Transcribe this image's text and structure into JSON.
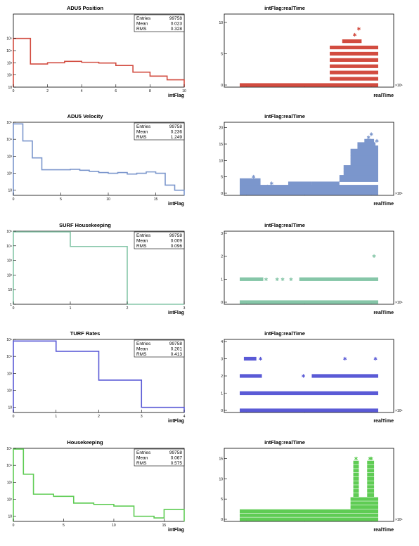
{
  "rows": [
    {
      "title": "ADU5 Position",
      "color": "#d24c40",
      "hist": {
        "xlabel": "intFlag",
        "x": [
          0,
          10
        ],
        "xticks": [
          "0",
          "2",
          "4",
          "6",
          "8",
          "10"
        ],
        "ylog": [
          10,
          10000000
        ],
        "yticks": [
          "10",
          "10²",
          "10³",
          "10⁴",
          "10⁵"
        ],
        "bins": [
          [
            0,
            1,
            100000
          ],
          [
            1,
            2,
            800
          ],
          [
            2,
            3,
            1000
          ],
          [
            3,
            4,
            1300
          ],
          [
            4,
            5,
            1100
          ],
          [
            5,
            6,
            950
          ],
          [
            6,
            7,
            600
          ],
          [
            7,
            8,
            170
          ],
          [
            8,
            9,
            80
          ],
          [
            9,
            10,
            40
          ]
        ],
        "stats": {
          "entries_label": "Entries",
          "entries": "99758",
          "mean_label": "Mean",
          "mean": "0.023",
          "rms_label": "RMS",
          "rms": "0.328"
        }
      },
      "scatter": {
        "title": "intFlag:realTime",
        "xlabel": "realTime",
        "exp": "×10⁶",
        "ymax": 11,
        "yticks": [
          0,
          5,
          10
        ],
        "baseline": [
          0
        ],
        "clusters": [
          [
            0.65,
            1.0,
            1
          ],
          [
            0.65,
            1.0,
            2
          ],
          [
            0.65,
            1.0,
            3
          ],
          [
            0.65,
            1.0,
            4
          ],
          [
            0.65,
            1.0,
            5
          ],
          [
            0.65,
            1.0,
            6
          ],
          [
            0.74,
            0.88,
            7
          ]
        ],
        "singles": [
          [
            0.83,
            8
          ],
          [
            0.86,
            9
          ]
        ]
      }
    },
    {
      "title": "ADU5 Velocity",
      "color": "#7b96cc",
      "hist": {
        "xlabel": "intFlag",
        "x": [
          0,
          18
        ],
        "xticks": [
          "0",
          "5",
          "10",
          "15"
        ],
        "ylog": [
          5,
          100000
        ],
        "yticks": [
          "10",
          "10²",
          "10³",
          "10⁴",
          "10⁵"
        ],
        "bins": [
          [
            0,
            1,
            80000
          ],
          [
            1,
            2,
            8000
          ],
          [
            2,
            3,
            800
          ],
          [
            3,
            4,
            160
          ],
          [
            4,
            5,
            160
          ],
          [
            5,
            6,
            160
          ],
          [
            6,
            7,
            170
          ],
          [
            7,
            8,
            150
          ],
          [
            8,
            9,
            130
          ],
          [
            9,
            10,
            110
          ],
          [
            10,
            11,
            100
          ],
          [
            11,
            12,
            110
          ],
          [
            12,
            13,
            90
          ],
          [
            13,
            14,
            100
          ],
          [
            14,
            15,
            120
          ],
          [
            15,
            16,
            100
          ],
          [
            16,
            17,
            20
          ],
          [
            17,
            18,
            10
          ]
        ],
        "stats": {
          "entries_label": "Entries",
          "entries": "99758",
          "mean_label": "Mean",
          "mean": "0.236",
          "rms_label": "RMS",
          "rms": "1.249"
        }
      },
      "scatter": {
        "title": "intFlag:realTime",
        "xlabel": "realTime",
        "exp": "×10⁶",
        "ymax": 21,
        "yticks": [
          0,
          5,
          10,
          15,
          20
        ],
        "baseline": [
          0,
          1,
          2
        ],
        "clusters": [
          [
            0.0,
            0.15,
            3
          ],
          [
            0.0,
            0.15,
            4
          ],
          [
            0.35,
            0.52,
            3
          ],
          [
            0.52,
            0.72,
            3
          ],
          [
            0.72,
            1.0,
            4
          ],
          [
            0.72,
            1.0,
            5
          ],
          [
            0.75,
            1.0,
            6
          ],
          [
            0.75,
            1.0,
            7
          ],
          [
            0.75,
            1.0,
            8
          ],
          [
            0.8,
            1.0,
            9
          ],
          [
            0.8,
            1.0,
            10
          ],
          [
            0.8,
            1.0,
            11
          ],
          [
            0.8,
            1.0,
            12
          ],
          [
            0.8,
            1.0,
            13
          ],
          [
            0.85,
            1.0,
            14
          ],
          [
            0.85,
            0.98,
            15
          ],
          [
            0.9,
            0.97,
            16
          ]
        ],
        "singles": [
          [
            0.1,
            5
          ],
          [
            0.2,
            2
          ],
          [
            0.23,
            3
          ],
          [
            0.93,
            17
          ],
          [
            0.95,
            18
          ],
          [
            0.99,
            16
          ]
        ]
      }
    },
    {
      "title": "SURF Housekeeping",
      "color": "#86c6a8",
      "hist": {
        "xlabel": "intFlag",
        "x": [
          0,
          3
        ],
        "xticks": [
          "0",
          "1",
          "2",
          "3"
        ],
        "ylog": [
          1,
          100000
        ],
        "yticks": [
          "1",
          "10",
          "10²",
          "10³",
          "10⁴",
          "10⁵"
        ],
        "bins": [
          [
            0,
            1,
            90000
          ],
          [
            1,
            2,
            9000
          ],
          [
            2,
            3,
            1
          ]
        ],
        "stats": {
          "entries_label": "Entries",
          "entries": "99758",
          "mean_label": "Mean",
          "mean": "0.009",
          "rms_label": "RMS",
          "rms": "0.096"
        }
      },
      "scatter": {
        "title": "intFlag:realTime",
        "xlabel": "realTime",
        "exp": "×10⁶",
        "ymax": 3,
        "yticks": [
          0,
          1,
          2,
          3
        ],
        "baseline": [
          0
        ],
        "clusters": [
          [
            0.0,
            0.17,
            1
          ],
          [
            0.43,
            1.0,
            1
          ]
        ],
        "singles": [
          [
            0.19,
            1
          ],
          [
            0.27,
            1
          ],
          [
            0.31,
            1
          ],
          [
            0.37,
            1
          ],
          [
            0.97,
            2
          ]
        ]
      }
    },
    {
      "title": "TURF Rates",
      "color": "#5a5ad6",
      "hist": {
        "xlabel": "intFlag",
        "x": [
          0,
          4
        ],
        "xticks": [
          "0",
          "1",
          "2",
          "3",
          "4"
        ],
        "ylog": [
          5,
          100000
        ],
        "yticks": [
          "10",
          "10²",
          "10³",
          "10⁴",
          "10⁵"
        ],
        "bins": [
          [
            0,
            1,
            80000
          ],
          [
            1,
            2,
            20000
          ],
          [
            2,
            3,
            400
          ],
          [
            3,
            4,
            10
          ]
        ],
        "stats": {
          "entries_label": "Entries",
          "entries": "99758",
          "mean_label": "Mean",
          "mean": "0.201",
          "rms_label": "RMS",
          "rms": "0.413"
        }
      },
      "scatter": {
        "title": "intFlag:realTime",
        "xlabel": "realTime",
        "exp": "×10⁶",
        "ymax": 4,
        "yticks": [
          0,
          1,
          2,
          3,
          4
        ],
        "baseline": [
          0,
          1
        ],
        "clusters": [
          [
            0.0,
            0.16,
            2
          ],
          [
            0.52,
            1.0,
            2
          ],
          [
            0.03,
            0.12,
            3
          ]
        ],
        "singles": [
          [
            0.15,
            3
          ],
          [
            0.46,
            2
          ],
          [
            0.76,
            3
          ],
          [
            0.98,
            3
          ]
        ]
      }
    },
    {
      "title": "Housekeeping",
      "color": "#5fcc54",
      "hist": {
        "xlabel": "intFlag",
        "x": [
          0,
          17
        ],
        "xticks": [
          "0",
          "5",
          "10",
          "15"
        ],
        "ylog": [
          5,
          100000
        ],
        "yticks": [
          "10",
          "10²",
          "10³",
          "10⁴",
          "10⁵"
        ],
        "bins": [
          [
            0,
            1,
            90000
          ],
          [
            1,
            2,
            3000
          ],
          [
            2,
            4,
            200
          ],
          [
            4,
            6,
            150
          ],
          [
            6,
            8,
            60
          ],
          [
            8,
            10,
            50
          ],
          [
            10,
            12,
            40
          ],
          [
            12,
            14,
            10
          ],
          [
            14,
            15,
            8
          ],
          [
            15,
            17,
            25
          ]
        ],
        "stats": {
          "entries_label": "Entries",
          "entries": "99758",
          "mean_label": "Mean",
          "mean": "0.067",
          "rms_label": "RMS",
          "rms": "0.575"
        }
      },
      "scatter": {
        "title": "intFlag:realTime",
        "xlabel": "realTime",
        "exp": "×10⁶",
        "ymax": 17,
        "yticks": [
          0,
          5,
          10,
          15
        ],
        "baseline": [
          0,
          1
        ],
        "clusters": [
          [
            0.0,
            1.0,
            2
          ],
          [
            0.8,
            1.0,
            3
          ],
          [
            0.8,
            1.0,
            4
          ],
          [
            0.8,
            1.0,
            5
          ],
          [
            0.82,
            0.86,
            6
          ],
          [
            0.82,
            0.86,
            7
          ],
          [
            0.82,
            0.86,
            8
          ],
          [
            0.82,
            0.86,
            9
          ],
          [
            0.82,
            0.86,
            10
          ],
          [
            0.82,
            0.86,
            11
          ],
          [
            0.82,
            0.86,
            12
          ],
          [
            0.82,
            0.86,
            13
          ],
          [
            0.82,
            0.86,
            14
          ],
          [
            0.92,
            0.97,
            6
          ],
          [
            0.92,
            0.97,
            7
          ],
          [
            0.92,
            0.97,
            8
          ],
          [
            0.92,
            0.97,
            9
          ],
          [
            0.92,
            0.97,
            10
          ],
          [
            0.92,
            0.97,
            11
          ],
          [
            0.92,
            0.97,
            12
          ],
          [
            0.92,
            0.97,
            13
          ],
          [
            0.92,
            0.97,
            14
          ]
        ],
        "singles": [
          [
            0.84,
            15
          ],
          [
            0.94,
            15
          ],
          [
            0.95,
            15
          ]
        ]
      }
    }
  ]
}
